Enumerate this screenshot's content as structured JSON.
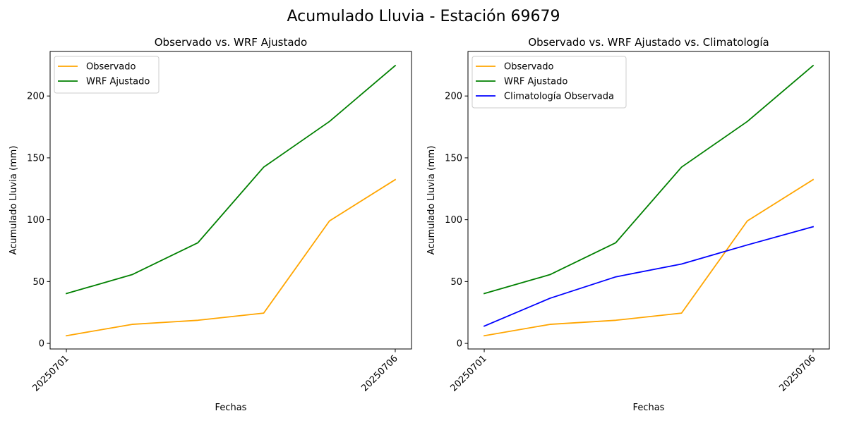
{
  "figure": {
    "suptitle": "Acumulado Lluvia - Estación 69679"
  },
  "chart_data": [
    {
      "type": "line",
      "title": "Observado vs. WRF Ajustado",
      "xlabel": "Fechas",
      "ylabel": "Acumulado Lluvia (mm)",
      "x": [
        "20250701",
        "20250702",
        "20250703",
        "20250704",
        "20250705",
        "20250706"
      ],
      "x_tick_labels": [
        "20250701",
        "20250706"
      ],
      "y_ticks": [
        0,
        50,
        100,
        150,
        200
      ],
      "ylim": [
        -4.5,
        236
      ],
      "grid": false,
      "legend_position": "upper-left",
      "series": [
        {
          "name": "Observado",
          "color": "#ffa500",
          "values": [
            6.2,
            15.4,
            18.7,
            24.5,
            99.0,
            132.4
          ]
        },
        {
          "name": "WRF Ajustado",
          "color": "#008000",
          "values": [
            40.3,
            55.6,
            81.4,
            142.5,
            179.4,
            224.6
          ]
        }
      ]
    },
    {
      "type": "line",
      "title": "Observado vs. WRF Ajustado vs. Climatología",
      "xlabel": "Fechas",
      "ylabel": "Acumulado Lluvia (mm)",
      "x": [
        "20250701",
        "20250702",
        "20250703",
        "20250704",
        "20250705",
        "20250706"
      ],
      "x_tick_labels": [
        "20250701",
        "20250706"
      ],
      "y_ticks": [
        0,
        50,
        100,
        150,
        200
      ],
      "ylim": [
        -4.5,
        236
      ],
      "grid": false,
      "legend_position": "upper-left",
      "series": [
        {
          "name": "Observado",
          "color": "#ffa500",
          "values": [
            6.2,
            15.4,
            18.7,
            24.5,
            99.0,
            132.4
          ]
        },
        {
          "name": "WRF Ajustado",
          "color": "#008000",
          "values": [
            40.3,
            55.6,
            81.4,
            142.5,
            179.4,
            224.6
          ]
        },
        {
          "name": "Climatología Observada",
          "color": "#0000ff",
          "values": [
            14.0,
            36.5,
            53.8,
            64.2,
            79.6,
            94.3
          ]
        }
      ]
    }
  ]
}
